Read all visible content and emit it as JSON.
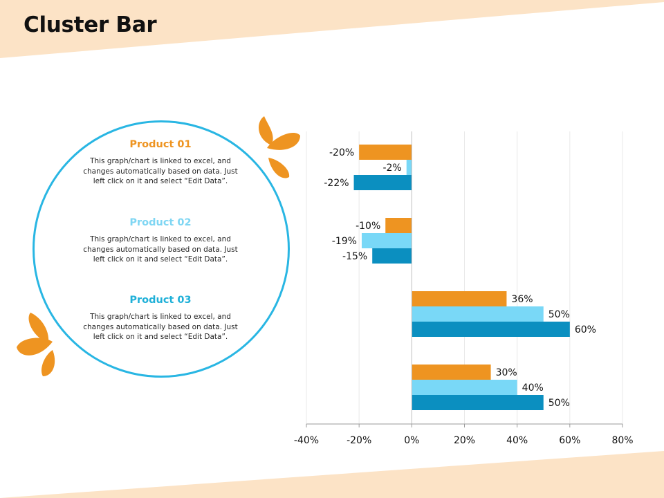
{
  "title": "Cluster Bar",
  "products": [
    {
      "title": "Product 01",
      "color": "#ee9421",
      "description": "This graph/chart is linked to excel, and changes automatically based on data. Just left click on it and select “Edit Data”."
    },
    {
      "title": "Product 02",
      "color": "#7fd6f3",
      "description": "This graph/chart is linked to excel, and changes automatically based on data. Just left click on it and select “Edit Data”."
    },
    {
      "title": "Product 03",
      "color": "#1fb0d8",
      "description": "This graph/chart is linked to excel, and changes automatically based on data. Just left click on it and select “Edit Data”."
    }
  ],
  "colors": {
    "accent_orange": "#ee9421",
    "light_blue": "#79d8f7",
    "dark_blue": "#0b8fc0",
    "circle": "#29b6e3",
    "band": "#fce3c6"
  },
  "chart_data": {
    "type": "bar",
    "orientation": "horizontal",
    "categories": [
      "",
      "",
      "",
      ""
    ],
    "series": [
      {
        "color": "#ee9421",
        "values": [
          -20,
          -10,
          36,
          30
        ]
      },
      {
        "color": "#79d8f7",
        "values": [
          -2,
          -19,
          50,
          40
        ]
      },
      {
        "color": "#0b8fc0",
        "values": [
          -22,
          -15,
          60,
          50
        ]
      }
    ],
    "data_labels": [
      [
        "-20%",
        "-10%",
        "36%",
        "30%"
      ],
      [
        "-2%",
        "-19%",
        "50%",
        "40%"
      ],
      [
        "-22%",
        "-15%",
        "60%",
        "50%"
      ]
    ],
    "xlim": [
      -40,
      80
    ],
    "xticks": [
      -40,
      -20,
      0,
      20,
      40,
      60,
      80
    ],
    "xtick_labels": [
      "-40%",
      "-20%",
      "0%",
      "20%",
      "40%",
      "60%",
      "80%"
    ],
    "grid": "vertical",
    "legend": "none"
  }
}
